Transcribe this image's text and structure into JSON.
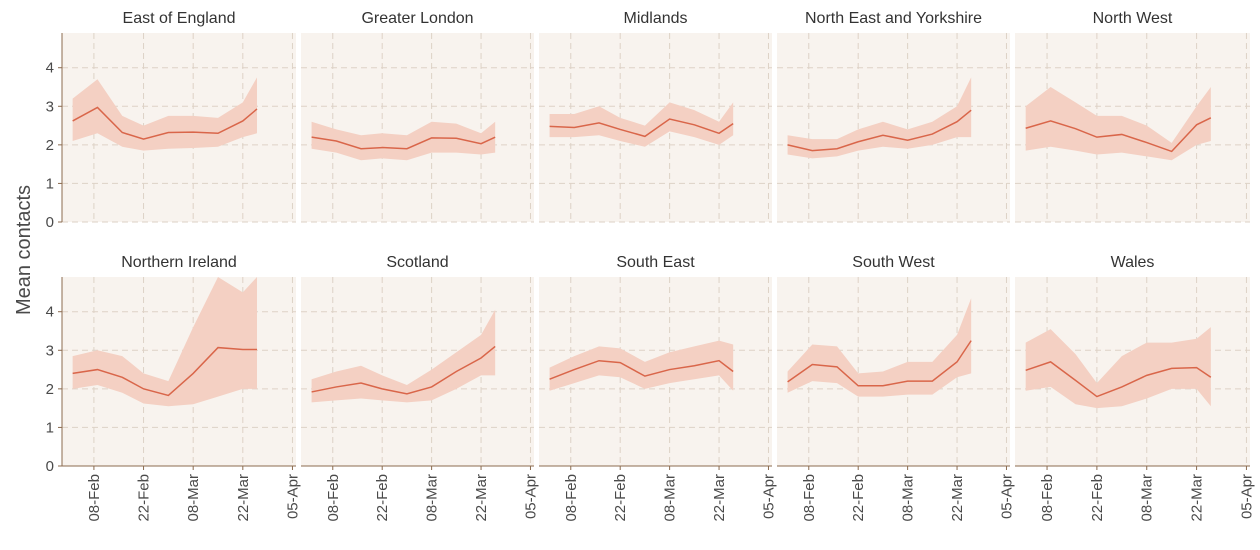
{
  "ylabel": "Mean contacts",
  "chart_data": [
    {
      "type": "line",
      "title": "East of England",
      "x": [
        "02-Feb",
        "09-Feb",
        "16-Feb",
        "22-Feb",
        "01-Mar",
        "08-Mar",
        "15-Mar",
        "22-Mar",
        "26-Mar"
      ],
      "series": [
        {
          "color": "#d9664a",
          "band_color": "#f4d0c3",
          "values": [
            2.62,
            2.97,
            2.32,
            2.15,
            2.32,
            2.33,
            2.3,
            2.62,
            2.93
          ],
          "lower": [
            2.1,
            2.3,
            1.95,
            1.85,
            1.9,
            1.92,
            1.95,
            2.2,
            2.3
          ],
          "upper": [
            3.2,
            3.7,
            2.75,
            2.5,
            2.75,
            2.75,
            2.7,
            3.1,
            3.75
          ]
        }
      ],
      "xlim": [
        "30-Jan",
        "06-Apr"
      ],
      "xticks": [
        "08-Feb",
        "22-Feb",
        "08-Mar",
        "22-Mar",
        "05-Apr"
      ],
      "ylim": [
        0,
        4.9
      ],
      "yticks": [
        0,
        1,
        2,
        3,
        4
      ],
      "grid": true
    },
    {
      "type": "line",
      "title": "Greater London",
      "x": [
        "02-Feb",
        "09-Feb",
        "16-Feb",
        "22-Feb",
        "01-Mar",
        "08-Mar",
        "15-Mar",
        "22-Mar",
        "26-Mar"
      ],
      "series": [
        {
          "color": "#d9664a",
          "band_color": "#f4d0c3",
          "values": [
            2.2,
            2.1,
            1.9,
            1.93,
            1.9,
            2.18,
            2.17,
            2.03,
            2.2
          ],
          "lower": [
            1.9,
            1.8,
            1.6,
            1.65,
            1.6,
            1.8,
            1.8,
            1.75,
            1.8
          ],
          "upper": [
            2.6,
            2.4,
            2.25,
            2.3,
            2.25,
            2.6,
            2.55,
            2.3,
            2.6
          ]
        }
      ],
      "xlim": [
        "30-Jan",
        "06-Apr"
      ],
      "xticks": [
        "08-Feb",
        "22-Feb",
        "08-Mar",
        "22-Mar",
        "05-Apr"
      ],
      "ylim": [
        0,
        4.9
      ],
      "yticks": [
        0,
        1,
        2,
        3,
        4
      ],
      "grid": true
    },
    {
      "type": "line",
      "title": "Midlands",
      "x": [
        "02-Feb",
        "09-Feb",
        "16-Feb",
        "22-Feb",
        "01-Mar",
        "08-Mar",
        "15-Mar",
        "22-Mar",
        "26-Mar"
      ],
      "series": [
        {
          "color": "#d9664a",
          "band_color": "#f4d0c3",
          "values": [
            2.48,
            2.45,
            2.57,
            2.4,
            2.22,
            2.67,
            2.52,
            2.3,
            2.55
          ],
          "lower": [
            2.2,
            2.2,
            2.25,
            2.1,
            1.95,
            2.35,
            2.2,
            2.0,
            2.25
          ],
          "upper": [
            2.8,
            2.8,
            3.0,
            2.7,
            2.5,
            3.1,
            2.9,
            2.6,
            3.1
          ]
        }
      ],
      "xlim": [
        "30-Jan",
        "06-Apr"
      ],
      "xticks": [
        "08-Feb",
        "22-Feb",
        "08-Mar",
        "22-Mar",
        "05-Apr"
      ],
      "ylim": [
        0,
        4.9
      ],
      "yticks": [
        0,
        1,
        2,
        3,
        4
      ],
      "grid": true
    },
    {
      "type": "line",
      "title": "North East and Yorkshire",
      "x": [
        "02-Feb",
        "09-Feb",
        "16-Feb",
        "22-Feb",
        "01-Mar",
        "08-Mar",
        "15-Mar",
        "22-Mar",
        "26-Mar"
      ],
      "series": [
        {
          "color": "#d9664a",
          "band_color": "#f4d0c3",
          "values": [
            2.0,
            1.85,
            1.9,
            2.08,
            2.25,
            2.12,
            2.28,
            2.6,
            2.9
          ],
          "lower": [
            1.75,
            1.65,
            1.7,
            1.85,
            1.95,
            1.9,
            2.0,
            2.2,
            2.2
          ],
          "upper": [
            2.25,
            2.15,
            2.15,
            2.4,
            2.6,
            2.4,
            2.6,
            3.0,
            3.75
          ]
        }
      ],
      "xlim": [
        "30-Jan",
        "06-Apr"
      ],
      "xticks": [
        "08-Feb",
        "22-Feb",
        "08-Mar",
        "22-Mar",
        "05-Apr"
      ],
      "ylim": [
        0,
        4.9
      ],
      "yticks": [
        0,
        1,
        2,
        3,
        4
      ],
      "grid": true
    },
    {
      "type": "line",
      "title": "North West",
      "x": [
        "02-Feb",
        "09-Feb",
        "16-Feb",
        "22-Feb",
        "01-Mar",
        "08-Mar",
        "15-Mar",
        "22-Mar",
        "26-Mar"
      ],
      "series": [
        {
          "color": "#d9664a",
          "band_color": "#f4d0c3",
          "values": [
            2.43,
            2.62,
            2.42,
            2.2,
            2.27,
            2.06,
            1.83,
            2.52,
            2.7
          ],
          "lower": [
            1.85,
            1.95,
            1.85,
            1.75,
            1.8,
            1.7,
            1.6,
            2.0,
            2.1
          ],
          "upper": [
            3.0,
            3.5,
            3.1,
            2.75,
            2.75,
            2.5,
            2.05,
            3.0,
            3.5
          ]
        }
      ],
      "xlim": [
        "30-Jan",
        "06-Apr"
      ],
      "xticks": [
        "08-Feb",
        "22-Feb",
        "08-Mar",
        "22-Mar",
        "05-Apr"
      ],
      "ylim": [
        0,
        4.9
      ],
      "yticks": [
        0,
        1,
        2,
        3,
        4
      ],
      "grid": true
    },
    {
      "type": "line",
      "title": "Northern Ireland",
      "x": [
        "02-Feb",
        "09-Feb",
        "16-Feb",
        "22-Feb",
        "01-Mar",
        "08-Mar",
        "15-Mar",
        "22-Mar",
        "26-Mar"
      ],
      "series": [
        {
          "color": "#d9664a",
          "band_color": "#f4d0c3",
          "values": [
            2.4,
            2.5,
            2.3,
            2.0,
            1.83,
            2.4,
            3.07,
            3.02,
            3.02
          ],
          "lower": [
            2.0,
            2.1,
            1.9,
            1.62,
            1.55,
            1.6,
            1.8,
            2.0,
            2.0
          ],
          "upper": [
            2.85,
            3.0,
            2.85,
            2.4,
            2.2,
            3.6,
            4.9,
            4.5,
            4.9
          ]
        }
      ],
      "xlim": [
        "30-Jan",
        "06-Apr"
      ],
      "xticks": [
        "08-Feb",
        "22-Feb",
        "08-Mar",
        "22-Mar",
        "05-Apr"
      ],
      "ylim": [
        0,
        4.9
      ],
      "yticks": [
        0,
        1,
        2,
        3,
        4
      ],
      "grid": true
    },
    {
      "type": "line",
      "title": "Scotland",
      "x": [
        "02-Feb",
        "09-Feb",
        "16-Feb",
        "22-Feb",
        "01-Mar",
        "08-Mar",
        "15-Mar",
        "22-Mar",
        "26-Mar"
      ],
      "series": [
        {
          "color": "#d9664a",
          "band_color": "#f4d0c3",
          "values": [
            1.92,
            2.05,
            2.15,
            2.0,
            1.87,
            2.05,
            2.45,
            2.8,
            3.1
          ],
          "lower": [
            1.65,
            1.7,
            1.75,
            1.7,
            1.65,
            1.7,
            2.0,
            2.35,
            2.35
          ],
          "upper": [
            2.25,
            2.45,
            2.6,
            2.35,
            2.1,
            2.5,
            2.95,
            3.4,
            4.05
          ]
        }
      ],
      "xlim": [
        "30-Jan",
        "06-Apr"
      ],
      "xticks": [
        "08-Feb",
        "22-Feb",
        "08-Mar",
        "22-Mar",
        "05-Apr"
      ],
      "ylim": [
        0,
        4.9
      ],
      "yticks": [
        0,
        1,
        2,
        3,
        4
      ],
      "grid": true
    },
    {
      "type": "line",
      "title": "South East",
      "x": [
        "02-Feb",
        "09-Feb",
        "16-Feb",
        "22-Feb",
        "01-Mar",
        "08-Mar",
        "15-Mar",
        "22-Mar",
        "26-Mar"
      ],
      "series": [
        {
          "color": "#d9664a",
          "band_color": "#f4d0c3",
          "values": [
            2.25,
            2.5,
            2.73,
            2.68,
            2.33,
            2.5,
            2.6,
            2.73,
            2.45
          ],
          "lower": [
            1.95,
            2.15,
            2.35,
            2.3,
            2.0,
            2.15,
            2.25,
            2.35,
            1.95
          ],
          "upper": [
            2.55,
            2.85,
            3.1,
            3.05,
            2.7,
            2.95,
            3.1,
            3.25,
            3.15
          ]
        }
      ],
      "xlim": [
        "30-Jan",
        "06-Apr"
      ],
      "xticks": [
        "08-Feb",
        "22-Feb",
        "08-Mar",
        "22-Mar",
        "05-Apr"
      ],
      "ylim": [
        0,
        4.9
      ],
      "yticks": [
        0,
        1,
        2,
        3,
        4
      ],
      "grid": true
    },
    {
      "type": "line",
      "title": "South West",
      "x": [
        "02-Feb",
        "09-Feb",
        "16-Feb",
        "22-Feb",
        "01-Mar",
        "08-Mar",
        "15-Mar",
        "22-Mar",
        "26-Mar"
      ],
      "series": [
        {
          "color": "#d9664a",
          "band_color": "#f4d0c3",
          "values": [
            2.18,
            2.63,
            2.57,
            2.08,
            2.08,
            2.2,
            2.2,
            2.7,
            3.25
          ],
          "lower": [
            1.9,
            2.2,
            2.15,
            1.8,
            1.8,
            1.85,
            1.85,
            2.3,
            2.4
          ],
          "upper": [
            2.45,
            3.15,
            3.1,
            2.4,
            2.45,
            2.7,
            2.7,
            3.4,
            4.35
          ]
        }
      ],
      "xlim": [
        "30-Jan",
        "06-Apr"
      ],
      "xticks": [
        "08-Feb",
        "22-Feb",
        "08-Mar",
        "22-Mar",
        "05-Apr"
      ],
      "ylim": [
        0,
        4.9
      ],
      "yticks": [
        0,
        1,
        2,
        3,
        4
      ],
      "grid": true
    },
    {
      "type": "line",
      "title": "Wales",
      "x": [
        "02-Feb",
        "09-Feb",
        "16-Feb",
        "22-Feb",
        "01-Mar",
        "08-Mar",
        "15-Mar",
        "22-Mar",
        "26-Mar"
      ],
      "series": [
        {
          "color": "#d9664a",
          "band_color": "#f4d0c3",
          "values": [
            2.48,
            2.7,
            2.22,
            1.8,
            2.05,
            2.35,
            2.53,
            2.55,
            2.3
          ],
          "lower": [
            1.95,
            2.05,
            1.6,
            1.5,
            1.55,
            1.75,
            2.0,
            2.0,
            1.55
          ],
          "upper": [
            3.2,
            3.55,
            2.9,
            2.15,
            2.85,
            3.2,
            3.2,
            3.3,
            3.6
          ]
        }
      ],
      "xlim": [
        "30-Jan",
        "06-Apr"
      ],
      "xticks": [
        "08-Feb",
        "22-Feb",
        "08-Mar",
        "22-Mar",
        "05-Apr"
      ],
      "ylim": [
        0,
        4.9
      ],
      "yticks": [
        0,
        1,
        2,
        3,
        4
      ],
      "grid": true
    }
  ]
}
